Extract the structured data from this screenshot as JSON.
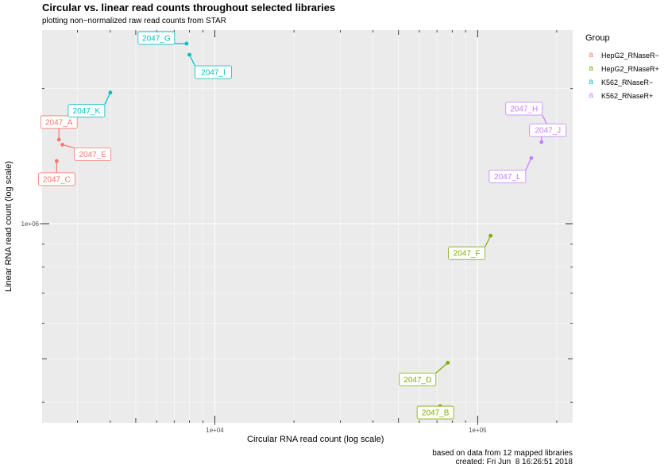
{
  "chart_data": {
    "type": "scatter",
    "title": "Circular vs. linear read counts throughout selected libraries",
    "subtitle": "plotting non−normalized raw read counts from STAR",
    "xlabel": "Circular RNA read count (log scale)",
    "ylabel": "Linear RNA read count (log scale)",
    "x_scale": "log10",
    "y_scale": "log10",
    "xlim": [
      2200,
      230000
    ],
    "ylim": [
      360000,
      2700000
    ],
    "x_ticks": [
      {
        "value": 10000,
        "label": "1e+04"
      },
      {
        "value": 100000,
        "label": "1e+05"
      }
    ],
    "y_ticks": [
      {
        "value": 1000000,
        "label": "1e+06"
      }
    ],
    "grid": true,
    "legend_title": "Group",
    "legend_position": "right",
    "series": [
      {
        "name": "HepG2_RNaseR−",
        "color": "#F8766D",
        "points": [
          {
            "label": "2047_A",
            "x": 2550,
            "y": 1540000
          },
          {
            "label": "2047_C",
            "x": 2500,
            "y": 1380000
          },
          {
            "label": "2047_E",
            "x": 2630,
            "y": 1500000
          }
        ]
      },
      {
        "name": "HepG2_RNaseR+",
        "color": "#7CAE00",
        "points": [
          {
            "label": "2047_B",
            "x": 72000,
            "y": 392000
          },
          {
            "label": "2047_D",
            "x": 77000,
            "y": 490000
          },
          {
            "label": "2047_F",
            "x": 112000,
            "y": 940000
          }
        ]
      },
      {
        "name": "K562_RNaseR−",
        "color": "#00BFC4",
        "points": [
          {
            "label": "2047_G",
            "x": 7800,
            "y": 2520000
          },
          {
            "label": "2047_I",
            "x": 8000,
            "y": 2380000
          },
          {
            "label": "2047_K",
            "x": 4000,
            "y": 1960000
          }
        ]
      },
      {
        "name": "K562_RNaseR+",
        "color": "#C77CFF",
        "points": [
          {
            "label": "2047_H",
            "x": 185000,
            "y": 1650000
          },
          {
            "label": "2047_J",
            "x": 175000,
            "y": 1520000
          },
          {
            "label": "2047_L",
            "x": 160000,
            "y": 1400000
          }
        ]
      }
    ]
  },
  "caption": {
    "line1": "based on data from 12 mapped libraries",
    "line2": "created: Fri Jun  8 16:26:51 2018"
  }
}
